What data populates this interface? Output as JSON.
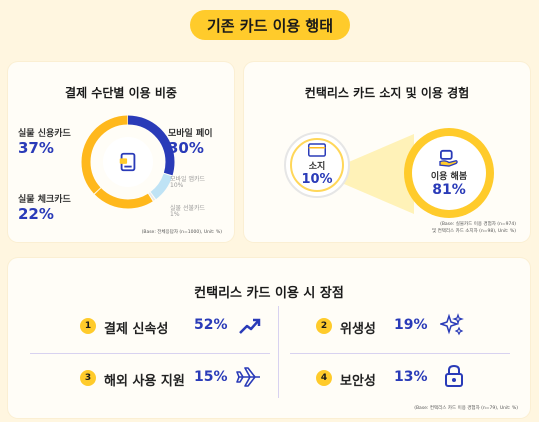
{
  "header": {
    "title": "기존 카드 이용 행태"
  },
  "payment": {
    "title": "결제 수단별 이용 비중",
    "items": [
      {
        "label": "실물 신용카드",
        "value": "37%"
      },
      {
        "label": "모바일 페이",
        "value": "30%"
      },
      {
        "label": "실물 체크카드",
        "value": "22%"
      },
      {
        "label": "모바일 앱카드",
        "value": "10%"
      },
      {
        "label": "실물 선불카드",
        "value": "1%"
      }
    ],
    "chart_values": [
      37,
      30,
      22,
      10,
      1
    ],
    "colors": [
      "#ffb81c",
      "#2a3bb8",
      "#ffb81c",
      "#bfe3f5",
      "#e8e8e8"
    ],
    "footnote": "(Base: 전체응답자 (n=1000), Unit: %)"
  },
  "contactless": {
    "title": "컨택리스 카드 소지 및 이용 경험",
    "own": {
      "label": "소지",
      "value": "10%"
    },
    "use": {
      "label": "이용 해봄",
      "value": "81%"
    },
    "footnote_1": "(Base: 실물카드 이용 경험자 (n=974)",
    "footnote_2": "및 컨택리스 카드 소지자 (n=98), Unit: %)"
  },
  "advantages": {
    "title": "컨택리스 카드 이용 시 장점",
    "items": [
      {
        "num": "1",
        "label": "결제 신속성",
        "value": "52%",
        "icon": "trend-up-icon"
      },
      {
        "num": "2",
        "label": "위생성",
        "value": "19%",
        "icon": "sparkle-icon"
      },
      {
        "num": "3",
        "label": "해외 사용 지원",
        "value": "15%",
        "icon": "airplane-icon"
      },
      {
        "num": "4",
        "label": "보안성",
        "value": "13%",
        "icon": "lock-icon"
      }
    ],
    "footnote": "(Base: 컨택리스 카드 이용 경험자 (n=79), Unit: %)"
  }
}
